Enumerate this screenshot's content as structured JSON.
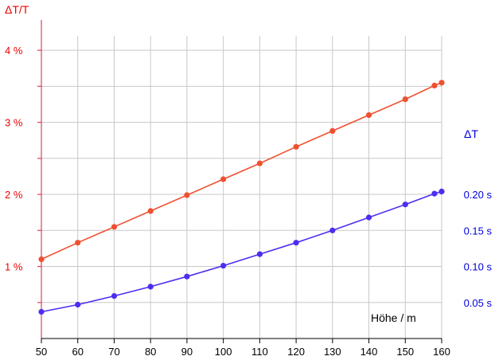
{
  "chart_data": {
    "type": "line",
    "x": [
      50,
      60,
      70,
      80,
      90,
      100,
      110,
      120,
      130,
      140,
      150,
      158,
      160
    ],
    "x_ticks": [
      "50",
      "60",
      "70",
      "80",
      "90",
      "100",
      "110",
      "120",
      "130",
      "140",
      "150",
      "160"
    ],
    "xlim": [
      50,
      160
    ],
    "xlabel": "Höhe / m",
    "y_left": {
      "label": "ΔT/T",
      "unit": "%",
      "ylim": [
        0,
        4.2
      ],
      "ticks": [
        "1 %",
        "2 %",
        "3 %",
        "4 %"
      ],
      "tick_values": [
        1,
        2,
        3,
        4
      ],
      "color": "#ee0000"
    },
    "y_right": {
      "label": "ΔT",
      "unit": "s",
      "ticks": [
        "0.05 s",
        "0.10 s",
        "0.15 s",
        "0.20 s"
      ],
      "tick_values": [
        0.05,
        0.1,
        0.15,
        0.2
      ],
      "tick_positions_left_units": [
        0.5,
        1.0,
        1.5,
        2.0
      ],
      "color": "#0000dd"
    },
    "grid": true,
    "series": [
      {
        "axis": "left",
        "color": "#f05030",
        "values": [
          1.1,
          1.33,
          1.55,
          1.77,
          1.99,
          2.21,
          2.43,
          2.66,
          2.88,
          3.1,
          3.32,
          3.51,
          3.55
        ]
      },
      {
        "axis": "right",
        "color": "#4c2ef0",
        "values": [
          0.037,
          0.047,
          0.059,
          0.072,
          0.086,
          0.101,
          0.117,
          0.133,
          0.15,
          0.168,
          0.186,
          0.201,
          0.204
        ]
      }
    ]
  }
}
